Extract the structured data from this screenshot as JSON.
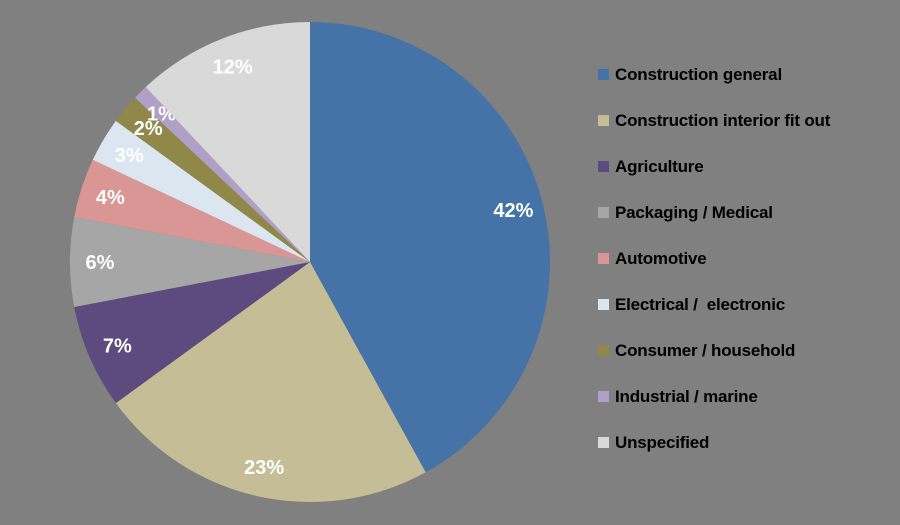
{
  "canvas": {
    "background_color": "#808080"
  },
  "chart_data": {
    "type": "pie",
    "title": "",
    "direction": "clockwise",
    "start_angle_deg": 0,
    "legend_position": "right",
    "data_label_format": "percent",
    "data_label_color": "#ffffff",
    "legend_text_color": "#000000",
    "categories": [
      "Construction general",
      "Construction interior fit out",
      "Agriculture",
      "Packaging / Medical",
      "Automotive",
      "Electrical /  electronic",
      "Consumer / household",
      "Industrial / marine",
      "Unspecified"
    ],
    "values": [
      42,
      23,
      7,
      6,
      4,
      3,
      2,
      1,
      12
    ],
    "series": [
      {
        "label": "Construction general",
        "value": 42,
        "display": "42%",
        "color": "#4573A7"
      },
      {
        "label": "Construction interior fit out",
        "value": 23,
        "display": "23%",
        "color": "#C5BD96"
      },
      {
        "label": "Agriculture",
        "value": 7,
        "display": "7%",
        "color": "#5D4A7E"
      },
      {
        "label": "Packaging / Medical",
        "value": 6,
        "display": "6%",
        "color": "#A6A6A6"
      },
      {
        "label": "Automotive",
        "value": 4,
        "display": "4%",
        "color": "#D99694"
      },
      {
        "label": "Electrical /  electronic",
        "value": 3,
        "display": "3%",
        "color": "#DCE6F1"
      },
      {
        "label": "Consumer / household",
        "value": 2,
        "display": "2%",
        "color": "#908849"
      },
      {
        "label": "Industrial / marine",
        "value": 1,
        "display": "1%",
        "color": "#B0A0C7"
      },
      {
        "label": "Unspecified",
        "value": 12,
        "display": "12%",
        "color": "#D9D9D9"
      }
    ]
  }
}
